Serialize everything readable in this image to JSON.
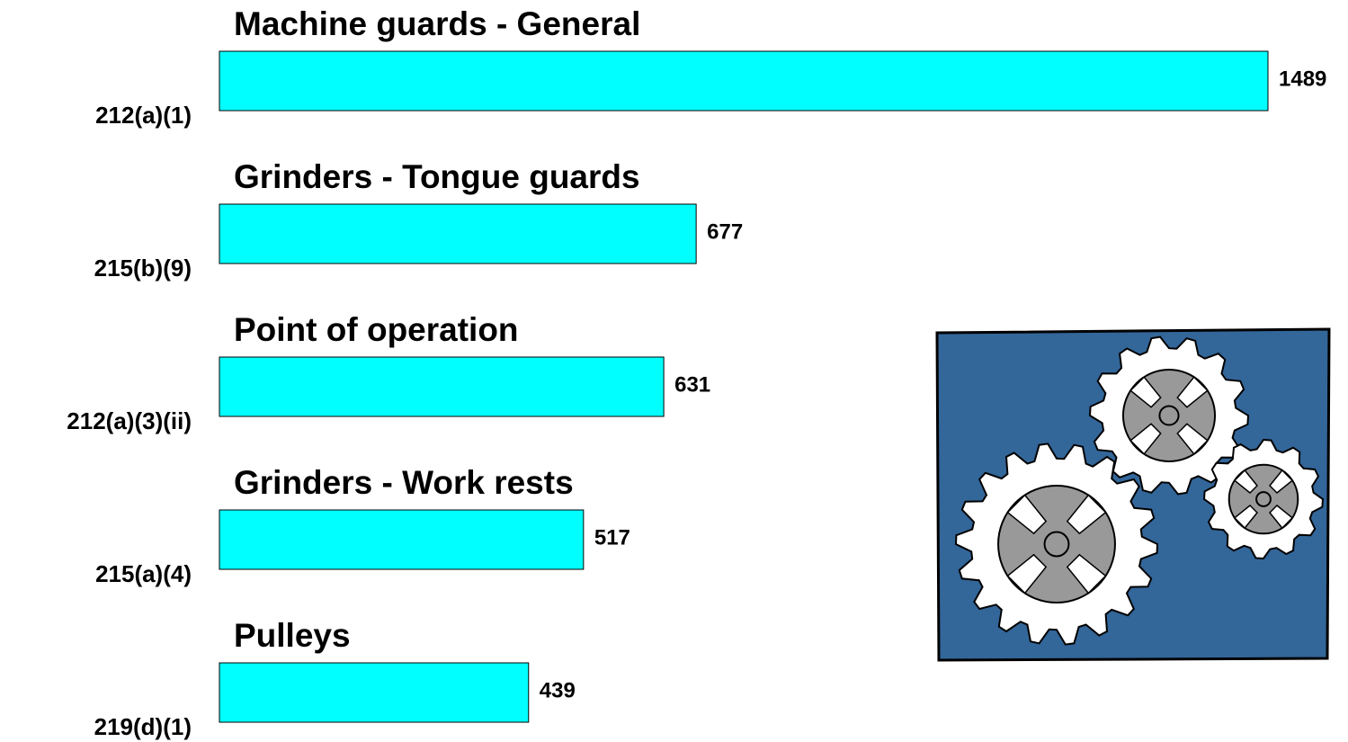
{
  "chart_data": {
    "type": "bar",
    "orientation": "horizontal",
    "categories": [
      "212(a)(1)",
      "215(b)(9)",
      "212(a)(3)(ii)",
      "215(a)(4)",
      "219(d)(1)"
    ],
    "bar_titles": [
      "Machine guards - General",
      "Grinders - Tongue guards",
      "Point of operation",
      "Grinders -  Work rests",
      "Pulleys"
    ],
    "values": [
      1489,
      677,
      631,
      517,
      439
    ],
    "color": "#00ffff"
  }
}
